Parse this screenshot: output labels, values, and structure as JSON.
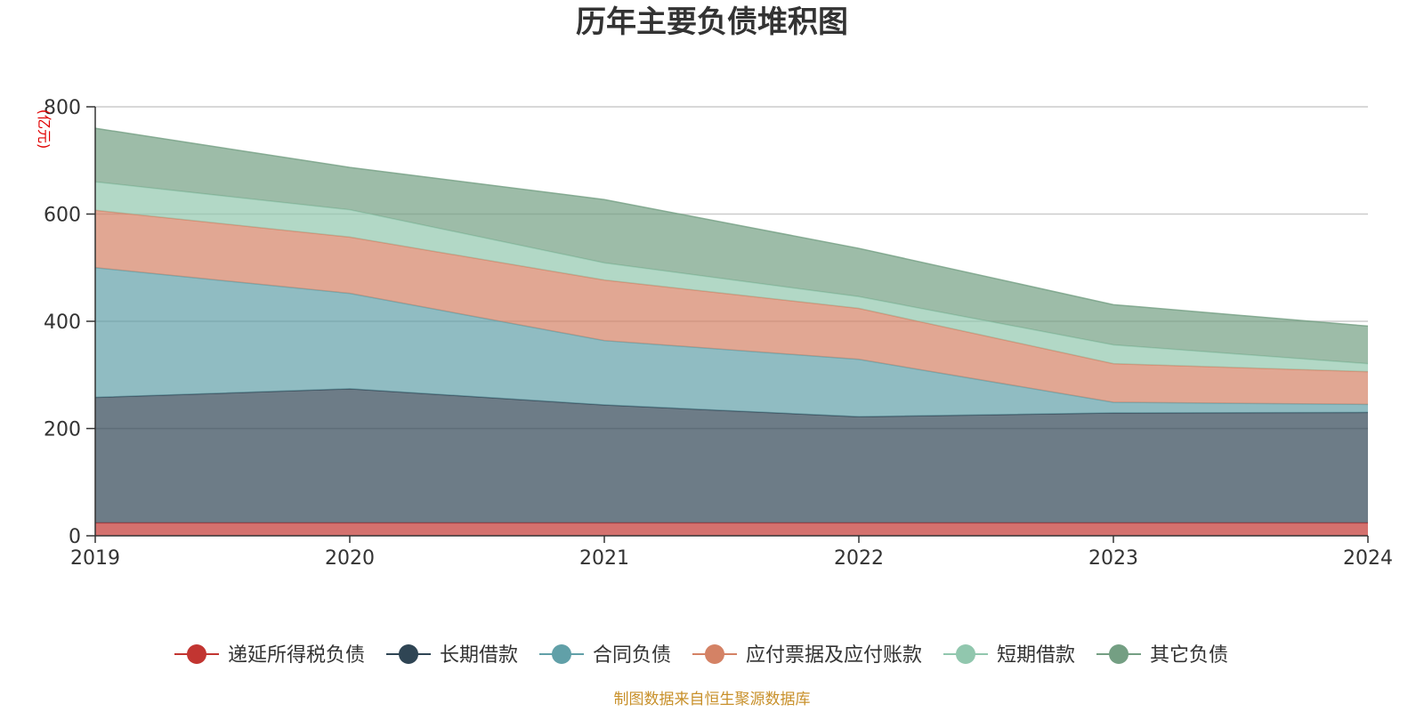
{
  "chart_data": {
    "type": "area",
    "stacked": true,
    "title": "历年主要负债堆积图",
    "y_unit_label": "(亿元)",
    "x": [
      "2019",
      "2020",
      "2021",
      "2022",
      "2023",
      "2024"
    ],
    "ylim": [
      0,
      800
    ],
    "y_ticks": [
      "0",
      "200",
      "400",
      "600",
      "800"
    ],
    "grid": true,
    "legend_position": "bottom",
    "series": [
      {
        "name": "递延所得税负债",
        "color": "#c23531",
        "values": [
          24,
          24,
          24,
          24,
          24,
          24
        ]
      },
      {
        "name": "长期借款",
        "color": "#2f4554",
        "values": [
          234,
          250,
          220,
          198,
          205,
          206
        ]
      },
      {
        "name": "合同负债",
        "color": "#61a0a8",
        "values": [
          242,
          178,
          120,
          107,
          20,
          15
        ]
      },
      {
        "name": "应付票据及应付账款",
        "color": "#d48265",
        "values": [
          107,
          105,
          113,
          95,
          72,
          61
        ]
      },
      {
        "name": "短期借款",
        "color": "#91c7ae",
        "values": [
          53,
          51,
          32,
          22,
          35,
          15
        ]
      },
      {
        "name": "其它负债",
        "color": "#749f83",
        "values": [
          100,
          79,
          118,
          90,
          75,
          70
        ]
      }
    ]
  },
  "footer": {
    "source_text": "制图数据来自恒生聚源数据库"
  }
}
